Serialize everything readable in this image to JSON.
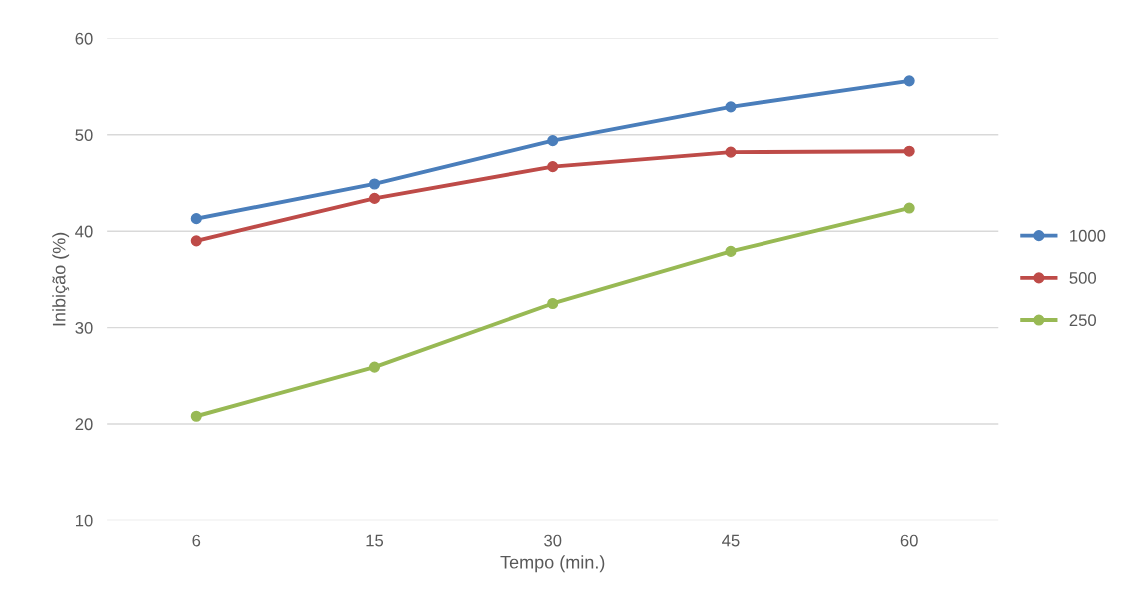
{
  "chart_data": {
    "type": "line",
    "xlabel": "Tempo (min.)",
    "ylabel": "Inibição (%)",
    "categories": [
      "6",
      "15",
      "30",
      "45",
      "60"
    ],
    "series": [
      {
        "name": "1000",
        "color": "#4a7ebb",
        "values": [
          41.3,
          44.9,
          49.4,
          52.9,
          55.6
        ]
      },
      {
        "name": "500",
        "color": "#be4b48",
        "values": [
          39.0,
          43.4,
          46.7,
          48.2,
          48.3
        ]
      },
      {
        "name": "250",
        "color": "#98b954",
        "values": [
          20.8,
          25.9,
          32.5,
          37.9,
          42.4
        ]
      }
    ],
    "ylim": [
      10,
      60
    ],
    "yticks": [
      10,
      20,
      30,
      40,
      50,
      60
    ],
    "grid": "y",
    "legend": "right",
    "marker": "circle",
    "line_style": "solid"
  }
}
